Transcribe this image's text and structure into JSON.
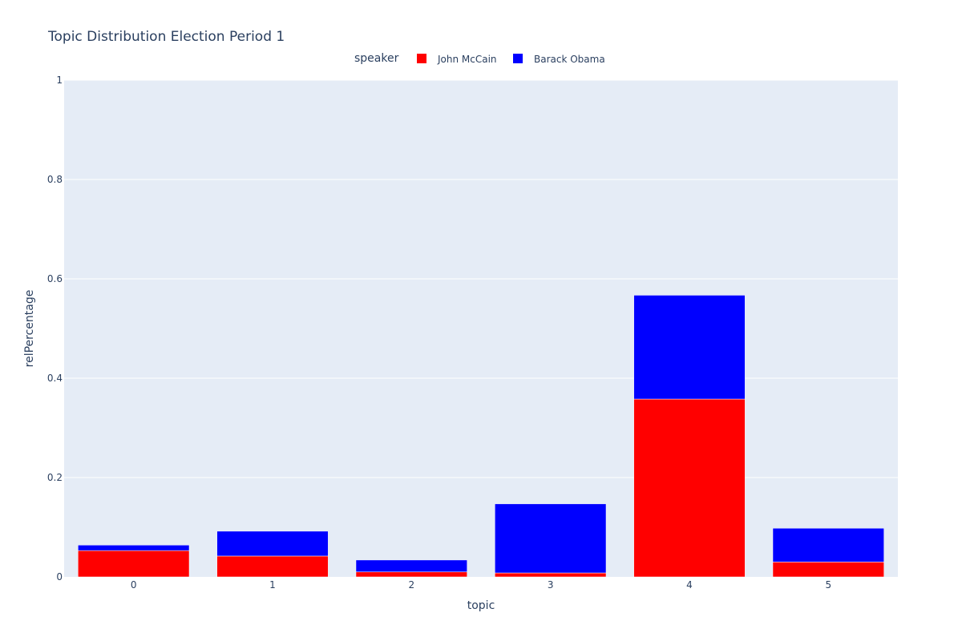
{
  "chart_data": {
    "type": "bar",
    "barmode": "stack",
    "title": "Topic Distribution Election Period 1",
    "xlabel": "topic",
    "ylabel": "relPercentage",
    "categories": [
      "0",
      "1",
      "2",
      "3",
      "4",
      "5"
    ],
    "ylim": [
      0,
      1
    ],
    "y_ticks": [
      "0",
      "0.2",
      "0.4",
      "0.6",
      "0.8",
      "1"
    ],
    "y_tick_values": [
      0,
      0.2,
      0.4,
      0.6,
      0.8,
      1
    ],
    "grid": true,
    "legend": {
      "title": "speaker",
      "placement": "top-center",
      "orientation": "horizontal"
    },
    "series": [
      {
        "name": "John McCain",
        "color": "#ff0000",
        "values": [
          0.053,
          0.042,
          0.01,
          0.008,
          0.358,
          0.03
        ]
      },
      {
        "name": "Barack Obama",
        "color": "#0000ff",
        "values": [
          0.011,
          0.05,
          0.024,
          0.139,
          0.209,
          0.068
        ]
      }
    ],
    "colors": {
      "plot_background": "#e5ecf6",
      "grid": "#ffffff",
      "text": "#2a3f5f"
    }
  }
}
